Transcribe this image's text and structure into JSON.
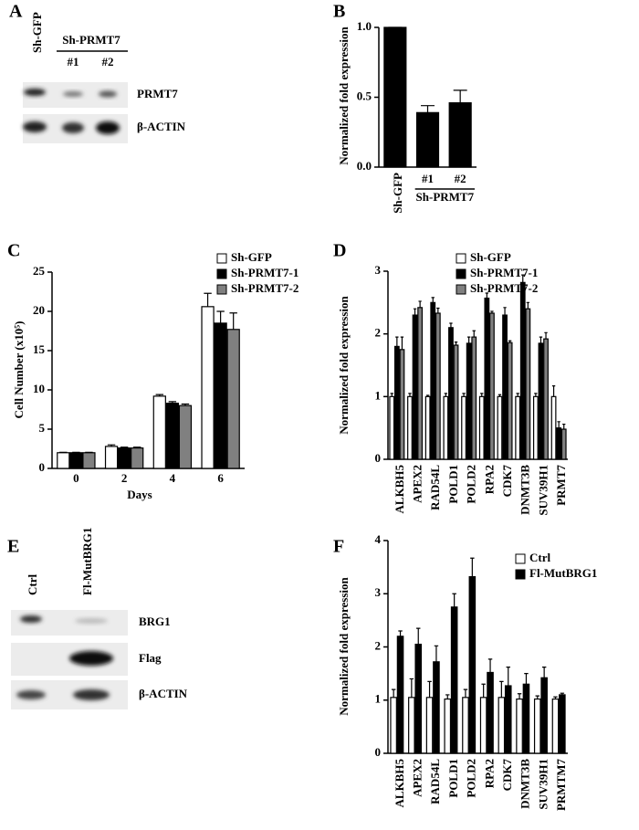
{
  "panel_labels": [
    "A",
    "B",
    "C",
    "D",
    "E",
    "F"
  ],
  "blot_a": {
    "lanes": [
      "Sh-GFP",
      "#1",
      "#2"
    ],
    "group_label": "Sh-PRMT7",
    "rows": [
      "PRMT7",
      "β-ACTIN"
    ]
  },
  "blot_e": {
    "lanes": [
      "Ctrl",
      "Fl-MutBRG1"
    ],
    "rows": [
      "BRG1",
      "Flag",
      "β-ACTIN"
    ]
  },
  "chart_data": [
    {
      "type": "bar",
      "y_label": "Normalized fold expression",
      "categories": [
        "Sh-GFP",
        "#1",
        "#2"
      ],
      "group_label": "Sh-PRMT7",
      "values": [
        1.0,
        0.39,
        0.46
      ],
      "errors": [
        0,
        0.05,
        0.09
      ],
      "color": "#000000",
      "ylim": [
        0,
        1
      ],
      "yticks": [
        {
          "value": 0,
          "label": "0.0"
        },
        {
          "value": 0.5,
          "label": "0.5"
        },
        {
          "value": 1,
          "label": "1.0"
        }
      ]
    },
    {
      "type": "bar",
      "y_label": "Cell Number (x10⁵)",
      "x_label": "Days",
      "categories": [
        "0",
        "2",
        "4",
        "6"
      ],
      "series": [
        {
          "name": "Sh-GFP",
          "color": "#ffffff",
          "values": [
            2.0,
            2.8,
            9.2,
            20.6
          ],
          "errors": [
            0.05,
            0.2,
            0.2,
            1.7
          ]
        },
        {
          "name": "Sh-PRMT7-1",
          "color": "#000000",
          "values": [
            2.0,
            2.6,
            8.3,
            18.5
          ],
          "errors": [
            0.05,
            0.1,
            0.2,
            1.5
          ]
        },
        {
          "name": "Sh-PRMT7-2",
          "color": "#808080",
          "values": [
            2.0,
            2.6,
            8.0,
            17.7
          ],
          "errors": [
            0.05,
            0.1,
            0.2,
            2.1
          ]
        }
      ],
      "ylim": [
        0,
        25
      ],
      "yticks": [
        0,
        5,
        10,
        15,
        20,
        25
      ]
    },
    {
      "type": "bar",
      "y_label": "Normalized fold expression",
      "categories": [
        "ALKBH5",
        "APEX2",
        "RAD54L",
        "POLD1",
        "POLD2",
        "RPA2",
        "CDK7",
        "DNMT3B",
        "SUV39H1",
        "PRMT7"
      ],
      "series": [
        {
          "name": "Sh-GFP",
          "color": "#ffffff",
          "values": [
            1,
            1,
            1,
            1,
            1,
            1,
            1,
            1,
            1,
            1
          ],
          "errors": [
            0.05,
            0.05,
            0.02,
            0.05,
            0.05,
            0.05,
            0.03,
            0.05,
            0.05,
            0.17
          ]
        },
        {
          "name": "Sh-PRMT7-1",
          "color": "#000000",
          "values": [
            1.8,
            2.3,
            2.5,
            2.1,
            1.85,
            2.57,
            2.3,
            2.82,
            1.85,
            0.5
          ],
          "errors": [
            0.15,
            0.1,
            0.08,
            0.07,
            0.1,
            0.08,
            0.12,
            0.12,
            0.1,
            0.1
          ]
        },
        {
          "name": "Sh-PRMT7-2",
          "color": "#808080",
          "values": [
            1.75,
            2.42,
            2.33,
            1.82,
            1.95,
            2.33,
            1.86,
            2.4,
            1.92,
            0.48
          ],
          "errors": [
            0.2,
            0.1,
            0.08,
            0.05,
            0.1,
            0.03,
            0.03,
            0.1,
            0.1,
            0.08
          ]
        }
      ],
      "ylim": [
        0,
        3
      ],
      "yticks": [
        0,
        1,
        2,
        3
      ]
    },
    {
      "type": "bar",
      "y_label": "Normalized fold expression",
      "categories": [
        "ALKBH5",
        "APEX2",
        "RAD54L",
        "POLD1",
        "POLD2",
        "RPA2",
        "CDK7",
        "DNMT3B",
        "SUV39H1",
        "PRMTM7"
      ],
      "series": [
        {
          "name": "Ctrl",
          "color": "#ffffff",
          "values": [
            1.05,
            1.05,
            1.05,
            1.02,
            1.05,
            1.05,
            1.05,
            1.02,
            1.02,
            1.02
          ],
          "errors": [
            0.15,
            0.35,
            0.3,
            0.08,
            0.15,
            0.25,
            0.3,
            0.1,
            0.06,
            0.04
          ]
        },
        {
          "name": "Fl-MutBRG1",
          "color": "#000000",
          "values": [
            2.2,
            2.05,
            1.72,
            2.75,
            3.32,
            1.52,
            1.27,
            1.3,
            1.42,
            1.1
          ],
          "errors": [
            0.1,
            0.3,
            0.3,
            0.25,
            0.35,
            0.25,
            0.35,
            0.2,
            0.2,
            0.03
          ]
        }
      ],
      "ylim": [
        0,
        4
      ],
      "yticks": [
        0,
        1,
        2,
        3,
        4
      ]
    }
  ]
}
